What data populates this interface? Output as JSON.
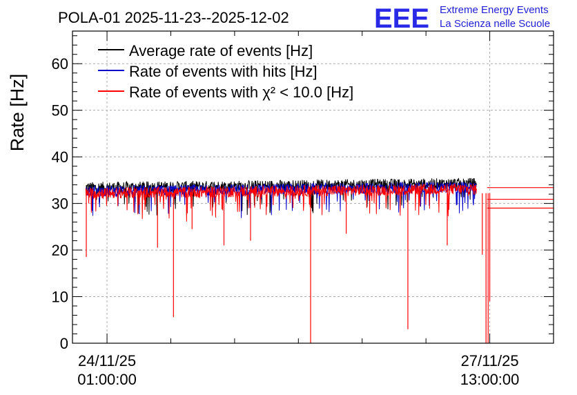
{
  "chart_data": {
    "type": "line",
    "title": "POLA-01 2025-11-23--2025-12-02",
    "ylabel": "Rate [Hz]",
    "xlabel": "",
    "ylim": [
      0,
      67
    ],
    "yticks": [
      0,
      10,
      20,
      30,
      40,
      50,
      60
    ],
    "x_range_hours": [
      -6.5,
      84.0
    ],
    "x_ticks": [
      {
        "hours": 0,
        "line1": "24/11/25",
        "line2": "01:00:00"
      },
      {
        "hours": 72,
        "line1": "27/11/25",
        "line2": "13:00:00"
      }
    ],
    "grid": true,
    "legend_position": "top-left",
    "series": [
      {
        "name": "Average rate of events [Hz]",
        "color": "#000000",
        "level": 33.4,
        "start": -4.0,
        "end": 69.5,
        "noise": 1.2
      },
      {
        "name": "Rate of events with hits [Hz]",
        "color": "#0000cc",
        "level": 32.6,
        "start": -4.0,
        "end": 69.5,
        "noise": 1.2
      },
      {
        "name": "Rate of events with χ² < 10.0 [Hz]",
        "color": "#ff0000",
        "level": 32.2,
        "start": -4.0,
        "end": 69.5,
        "noise": 1.2
      }
    ],
    "dips": [
      {
        "x": -3.9,
        "y": 18.5
      },
      {
        "x": 12.5,
        "y": 5.6
      },
      {
        "x": 38.3,
        "y": 0
      },
      {
        "x": 56.6,
        "y": 3
      },
      {
        "x": 71.3,
        "y": 0
      },
      {
        "x": 71.7,
        "y": 0
      },
      {
        "x": 72.0,
        "y": 9
      },
      {
        "x": 9.5,
        "y": 20.5
      },
      {
        "x": 16.0,
        "y": 24.5
      },
      {
        "x": 22.0,
        "y": 21.0
      },
      {
        "x": 27.0,
        "y": 22.0
      },
      {
        "x": 45.0,
        "y": 23.5
      },
      {
        "x": 64.0,
        "y": 21.0
      },
      {
        "x": 70.6,
        "y": 19.0
      }
    ],
    "tail_lines": [
      {
        "color": "#ff0000",
        "y": 33.4,
        "from": 71.5,
        "to": 84.0
      },
      {
        "color": "#ff0000",
        "y": 30.9,
        "from": 71.5,
        "to": 84.0
      },
      {
        "color": "#ff0000",
        "y": 29.0,
        "from": 71.5,
        "to": 84.0
      }
    ],
    "grid_color": "#aaaaaa",
    "logo": {
      "text": "EEE",
      "line1": "Extreme Energy Events",
      "line2": "La Scienza nelle Scuole",
      "color": "#2a2ae6"
    }
  }
}
